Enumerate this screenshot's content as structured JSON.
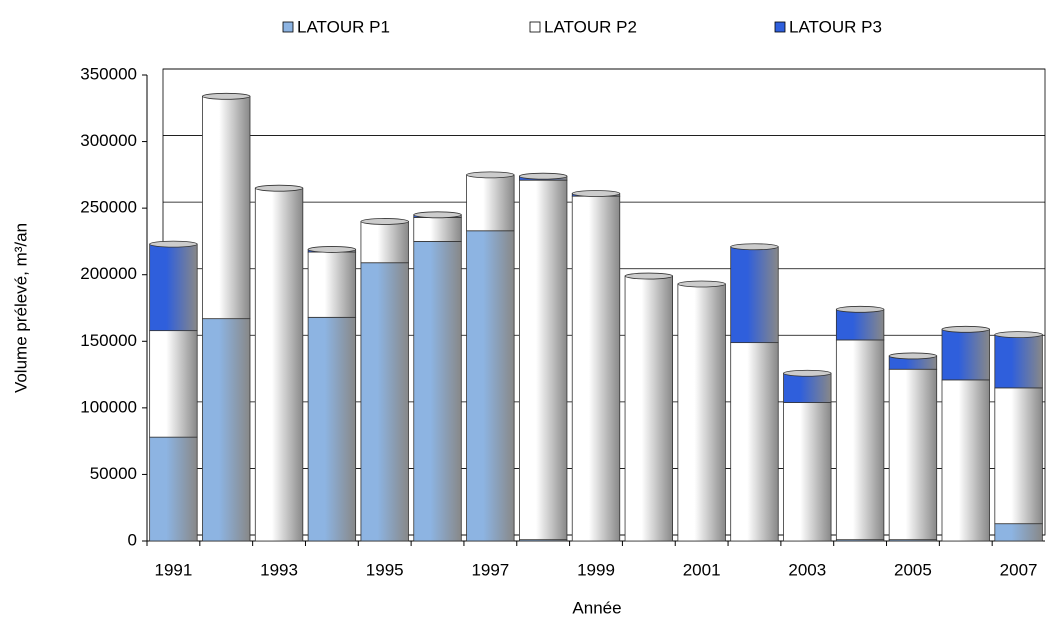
{
  "chart_data": {
    "type": "stacked-bar",
    "x_label": "Année",
    "y_label": "Volume prélevé, m³/an",
    "categories": [
      "1991",
      null,
      "1993",
      null,
      "1995",
      null,
      "1997",
      null,
      "1999",
      null,
      "2001",
      null,
      "2003",
      null,
      "2005",
      null,
      "2007"
    ],
    "series": [
      {
        "name": "LATOUR P1",
        "color": "#8db4e2",
        "values": [
          78000,
          167000,
          0,
          168000,
          209000,
          225000,
          233000,
          1000,
          0,
          0,
          0,
          0,
          0,
          1000,
          1000,
          0,
          13000
        ]
      },
      {
        "name": "LATOUR P2",
        "color": "#ffffff",
        "values": [
          80000,
          167000,
          265000,
          49000,
          31000,
          18000,
          42000,
          270000,
          259000,
          199000,
          193000,
          149000,
          104000,
          150000,
          128000,
          121000,
          102000
        ]
      },
      {
        "name": "LATOUR P3",
        "color": "#2f5fdc",
        "values": [
          65000,
          0,
          0,
          2000,
          0,
          2000,
          0,
          3000,
          2000,
          0,
          0,
          72000,
          22000,
          23000,
          10000,
          38000,
          40000
        ]
      }
    ],
    "ylim": [
      0,
      350000
    ],
    "yticks": [
      0,
      50000,
      100000,
      150000,
      200000,
      250000,
      300000,
      350000
    ],
    "grid": true,
    "legend": "top"
  }
}
